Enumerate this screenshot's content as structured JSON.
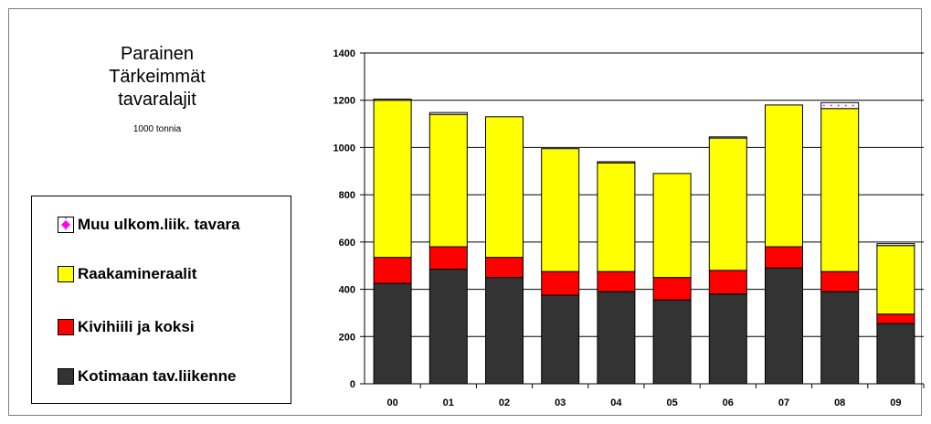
{
  "title_lines": [
    "Parainen",
    "Tärkeimmät",
    "tavaralajit"
  ],
  "unit": "1000 tonnia",
  "chart_data": {
    "type": "bar",
    "stacked": true,
    "categories": [
      "00",
      "01",
      "02",
      "03",
      "04",
      "05",
      "06",
      "07",
      "08",
      "09"
    ],
    "ylim": [
      0,
      1400
    ],
    "yticks": [
      0,
      200,
      400,
      600,
      800,
      1000,
      1200,
      1400
    ],
    "grid": true,
    "legend_position": "left",
    "series": [
      {
        "name": "Kotimaan tav.liikenne",
        "color": "#333333",
        "values": [
          425,
          485,
          450,
          375,
          390,
          355,
          380,
          490,
          390,
          255
        ]
      },
      {
        "name": "Kivihiili ja koksi",
        "color": "#ff0000",
        "values": [
          110,
          95,
          85,
          100,
          85,
          95,
          100,
          90,
          85,
          40
        ]
      },
      {
        "name": "Raakamineraalit",
        "color": "#ffff00",
        "values": [
          665,
          560,
          595,
          520,
          460,
          440,
          560,
          600,
          690,
          290
        ]
      },
      {
        "name": "Muu ulkom.liik. tavara",
        "color": "#ffffff",
        "values": [
          5,
          8,
          0,
          0,
          5,
          0,
          5,
          0,
          25,
          8
        ]
      }
    ]
  }
}
